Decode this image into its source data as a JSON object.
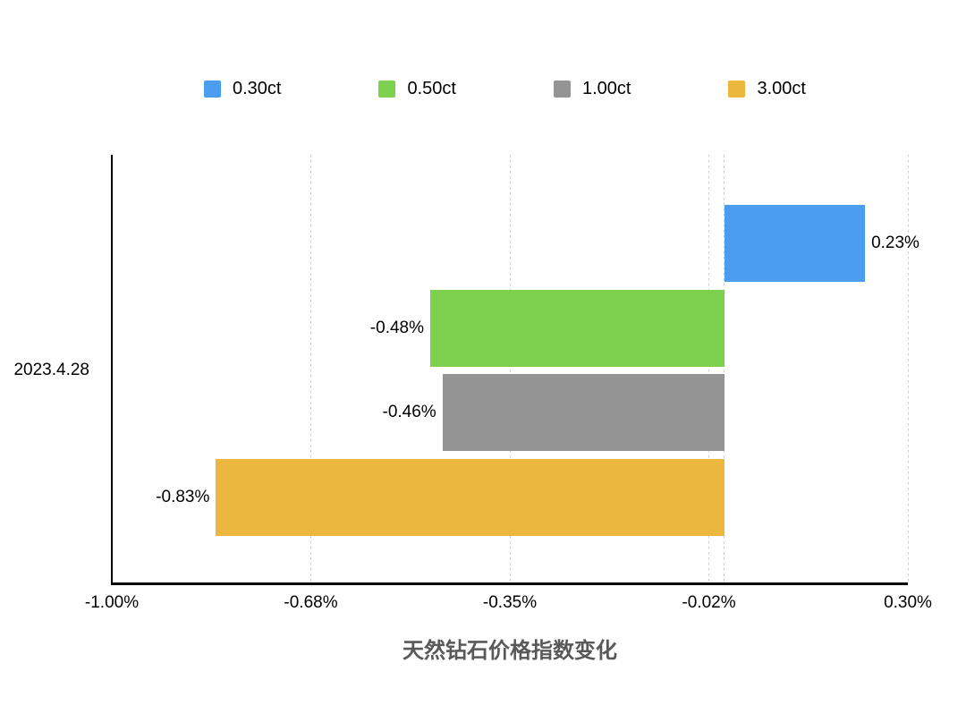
{
  "chart_data": {
    "type": "bar",
    "orientation": "horizontal",
    "title": "天然钻石价格指数变化",
    "category": "2023.4.28",
    "series": [
      {
        "name": "0.30ct",
        "value": 0.23,
        "label": "0.23%",
        "color": "#4A9DEF"
      },
      {
        "name": "0.50ct",
        "value": -0.48,
        "label": "-0.48%",
        "color": "#7DD14E"
      },
      {
        "name": "1.00ct",
        "value": -0.46,
        "label": "-0.46%",
        "color": "#949494"
      },
      {
        "name": "3.00ct",
        "value": -0.83,
        "label": "-0.83%",
        "color": "#EBB73E"
      }
    ],
    "xlim": [
      -1.0,
      0.3
    ],
    "xticks": [
      {
        "value": -1.0,
        "label": "-1.00%"
      },
      {
        "value": -0.675,
        "label": "-0.68%"
      },
      {
        "value": -0.35,
        "label": "-0.35%"
      },
      {
        "value": -0.025,
        "label": "-0.02%"
      },
      {
        "value": 0.3,
        "label": "0.30%"
      }
    ],
    "zero_line": true,
    "grid": "vertical-dashed",
    "legend_position": "top",
    "style": {
      "background": "#FFFFFF",
      "axis_color": "#000000",
      "gridline_color": "#C9C9C9",
      "text_color": "#000000",
      "title_color": "#595959"
    }
  }
}
